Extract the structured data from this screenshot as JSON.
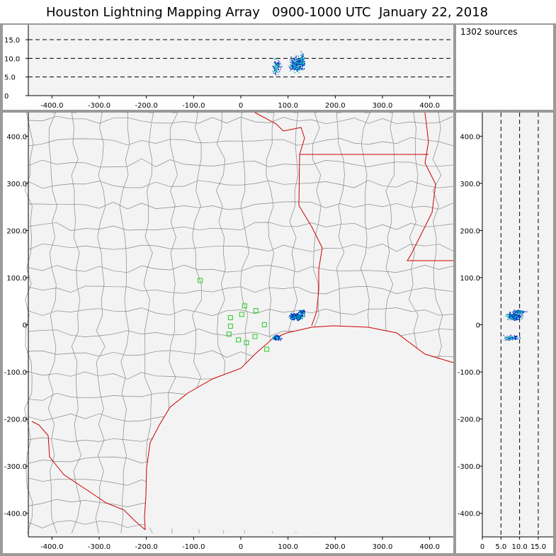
{
  "title": "Houston Lightning Mapping Array   0900-1000 UTC  January 22, 2018",
  "source_count": "1302 sources",
  "map": {
    "x_tick_labels": [
      "-400.0",
      "-300.0",
      "-200.0",
      "-100.0",
      "0",
      "100.0",
      "200.0",
      "300.0",
      "400.0"
    ],
    "y_tick_labels": [
      "400.0",
      "300.0",
      "200.0",
      "100.0",
      "0",
      "-100.0",
      "-200.0",
      "-300.0",
      "-400.0"
    ],
    "xlim": [
      -450,
      450
    ],
    "ylim": [
      -450,
      450
    ],
    "x_tick_values": [
      -400,
      -300,
      -200,
      -100,
      0,
      100,
      200,
      300,
      400
    ],
    "y_tick_values": [
      400,
      300,
      200,
      100,
      0,
      -100,
      -200,
      -300,
      -400
    ],
    "colors": {
      "background": "#f3f3f3",
      "county_borders": "#888888",
      "state_coast": "#cc0000",
      "stations": "#22cc22",
      "early_sources": "#0000cc",
      "late_sources": "#00cccc"
    }
  },
  "altitude_top": {
    "y_tick_labels": [
      "15.0",
      "10.0",
      "5.0",
      "0"
    ],
    "y_tick_values": [
      15,
      10,
      5,
      0
    ],
    "ylim": [
      0,
      19
    ],
    "x_tick_labels": [
      "-400.0",
      "-300.0",
      "-200.0",
      "-100.0",
      "0",
      "100.0",
      "200.0",
      "300.0",
      "400.0"
    ],
    "dashed_levels": [
      5,
      10,
      15
    ]
  },
  "altitude_side": {
    "x_tick_labels": [
      "0",
      "5.0",
      "10.0",
      "15.0"
    ],
    "x_tick_values": [
      0,
      5,
      10,
      15
    ],
    "y_tick_labels": [
      "400.0",
      "300.0",
      "200.0",
      "100.0",
      "0",
      "-100.0",
      "-200.0",
      "-300.0",
      "-400.0"
    ],
    "dashed_levels": [
      5,
      10,
      15
    ]
  },
  "stations": [
    {
      "x": -86,
      "y": 94
    },
    {
      "x": -22,
      "y": 15
    },
    {
      "x": 8,
      "y": 40
    },
    {
      "x": 2,
      "y": 22
    },
    {
      "x": 32,
      "y": 30
    },
    {
      "x": 50,
      "y": 0
    },
    {
      "x": -22,
      "y": -3
    },
    {
      "x": -25,
      "y": -20
    },
    {
      "x": -5,
      "y": -32
    },
    {
      "x": 12,
      "y": -38
    },
    {
      "x": 30,
      "y": -25
    },
    {
      "x": 55,
      "y": -52
    }
  ],
  "source_clusters": [
    {
      "x": 117,
      "y": 18,
      "spread_x": 16,
      "spread_y": 8,
      "alt": 8.5,
      "n": 320
    },
    {
      "x": 75,
      "y": -27,
      "spread_x": 10,
      "spread_y": 6,
      "alt": 8.0,
      "n": 110
    },
    {
      "x": 130,
      "y": 28,
      "spread_x": 6,
      "spread_y": 5,
      "alt": 9.5,
      "n": 90
    }
  ]
}
